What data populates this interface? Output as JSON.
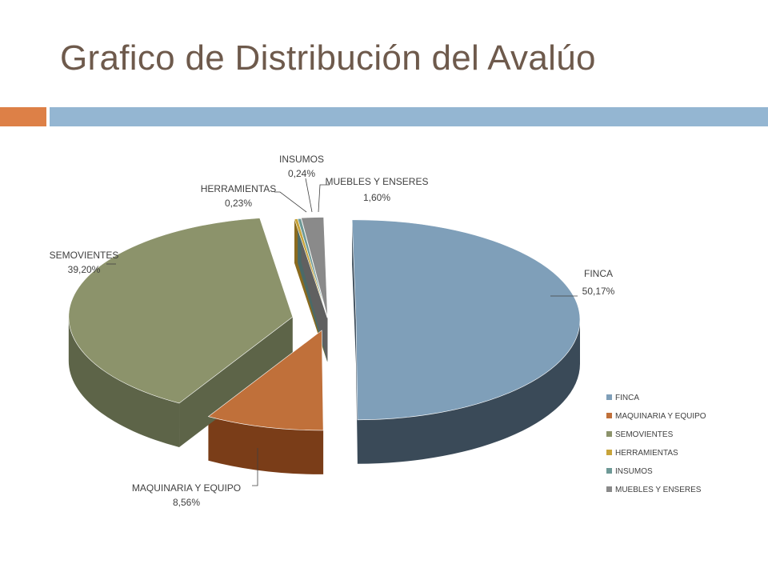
{
  "slide": {
    "title": "Grafico de Distribución del Avalúo",
    "accent_colors": [
      "#dd8047",
      "#94b6d2"
    ]
  },
  "chart_data": {
    "type": "pie",
    "title": "",
    "exploded": true,
    "three_d": true,
    "legend_position": "right",
    "categories": [
      "FINCA",
      "MAQUINARIA Y EQUIPO",
      "SEMOVIENTES",
      "HERRAMIENTAS",
      "INSUMOS",
      "MUEBLES Y ENSERES"
    ],
    "values": [
      50.17,
      8.56,
      39.2,
      0.23,
      0.24,
      1.6
    ],
    "labels": [
      "50,17%",
      "8,56%",
      "39,20%",
      "0,23%",
      "0,24%",
      "1,60%"
    ],
    "colors": [
      "#7f9fb9",
      "#c0703a",
      "#8c936b",
      "#c8a43a",
      "#6e9996",
      "#8a8a8a"
    ],
    "side_colors": [
      "#3a4a58",
      "#7a3d18",
      "#5d6448",
      "#8a6a1e",
      "#4a6a68",
      "#606060"
    ]
  }
}
